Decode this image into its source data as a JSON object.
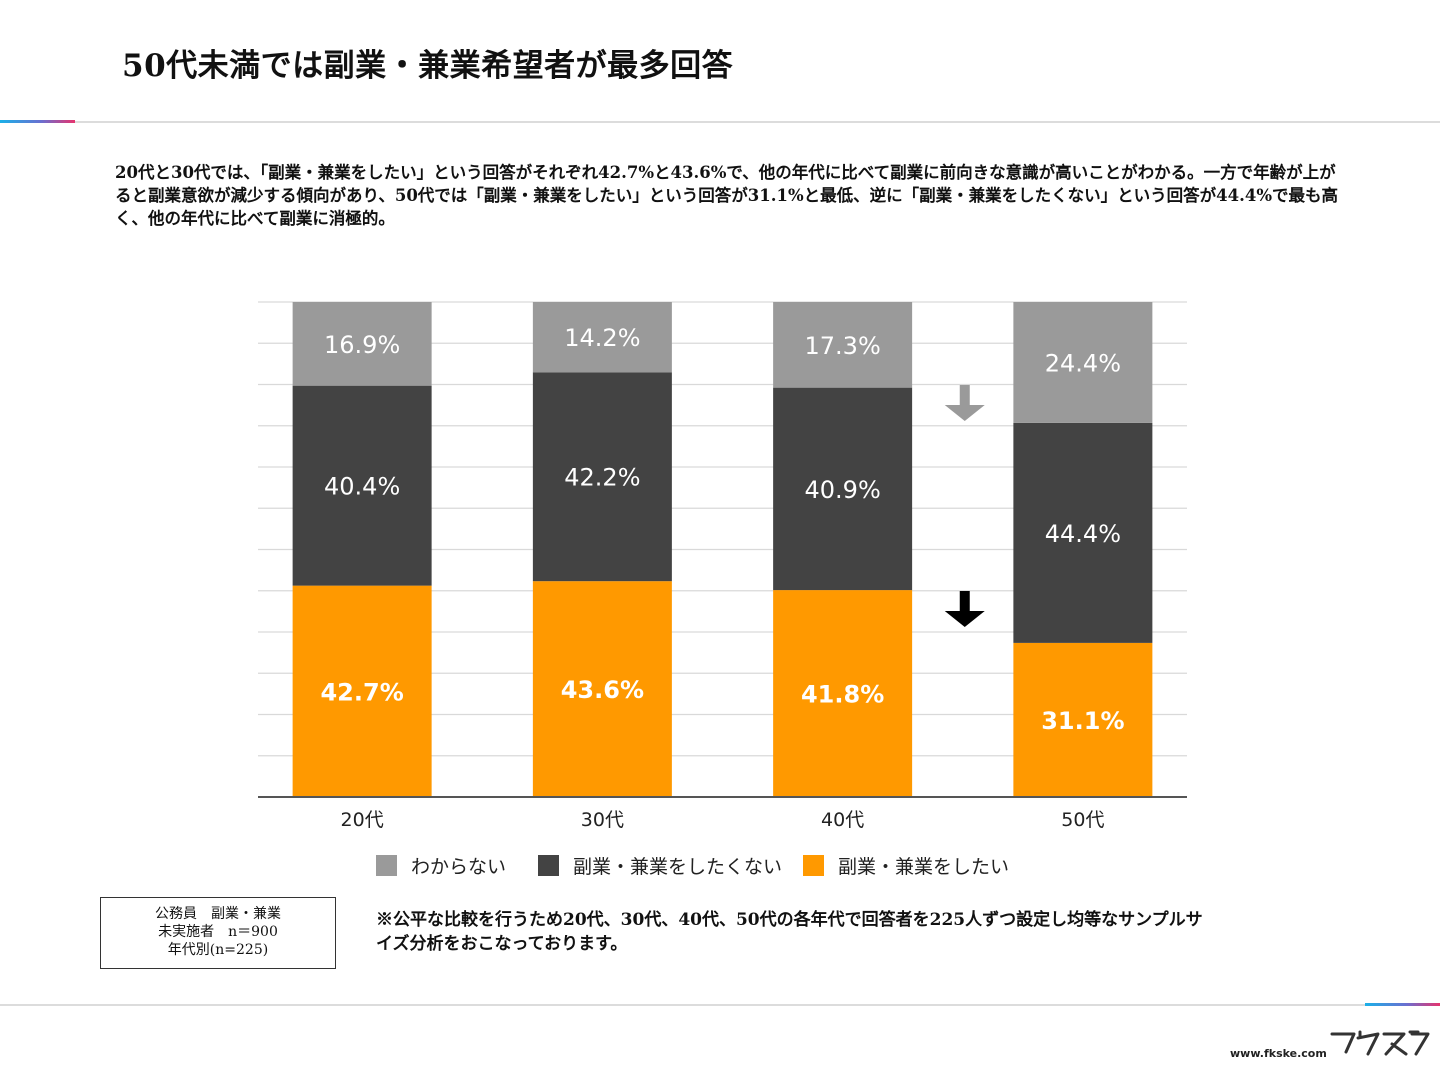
{
  "title": "50代未満では副業・兼業希望者が最多回答",
  "summary": "20代と30代では、「副業・兼業をしたい」という回答がそれぞれ42.7%と43.6%で、他の年代に比べて副業に前向きな意識が高いことがわかる。一方で年齢が上がると副業意欲が減少する傾向があり、50代では「副業・兼業をしたい」という回答が31.1%と最低、逆に「副業・兼業をしたくない」という回答が44.4%で最も高く、他の年代に比べて副業に消極的。",
  "colors": {
    "unknown": "#9a9a9a",
    "not_want": "#434343",
    "want": "#ff9900",
    "gridline": "#d9d9d9",
    "axis": "#555555",
    "arrow_gray": "#9a9a9a",
    "arrow_black": "#000000"
  },
  "chart_data": {
    "type": "bar",
    "stacked": true,
    "categories": [
      "20代",
      "30代",
      "40代",
      "50代"
    ],
    "series": [
      {
        "name": "副業・兼業をしたい",
        "key": "want",
        "values": [
          42.7,
          43.6,
          41.8,
          31.1
        ],
        "labels": [
          "42.7%",
          "43.6%",
          "41.8%",
          "31.1%"
        ]
      },
      {
        "name": "副業・兼業をしたくない",
        "key": "not_want",
        "values": [
          40.4,
          42.2,
          40.9,
          44.4
        ],
        "labels": [
          "40.4%",
          "42.2%",
          "40.9%",
          "44.4%"
        ]
      },
      {
        "name": "わからない",
        "key": "unknown",
        "values": [
          16.9,
          14.2,
          17.3,
          24.4
        ],
        "labels": [
          "16.9%",
          "14.2%",
          "17.3%",
          "24.4%"
        ]
      }
    ],
    "legend": [
      "わからない",
      "副業・兼業をしたくない",
      "副業・兼業をしたい"
    ],
    "legend_position": "bottom",
    "ylim": [
      0,
      100
    ],
    "grid": true,
    "annotations": [
      {
        "type": "arrow-down",
        "color": "gray",
        "between": [
          "40代",
          "50代"
        ],
        "series": "わからない"
      },
      {
        "type": "arrow-down",
        "color": "black",
        "between": [
          "40代",
          "50代"
        ],
        "series": "副業・兼業をしたい"
      }
    ]
  },
  "sample_box": {
    "line1": "公務員　副業・兼業",
    "line2": "未実施者　n＝900",
    "line3": "年代別(n=225)"
  },
  "note": "※公平な比較を行うため20代、30代、40代、50代の各年代で回答者を225人ずつ設定し均等なサンプルサイズ分析をおこなっております。",
  "footer": {
    "url": "www.fkske.com",
    "logo_text": "フクスケ"
  }
}
